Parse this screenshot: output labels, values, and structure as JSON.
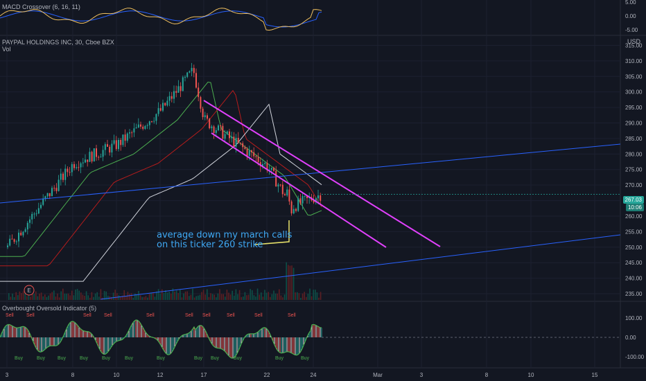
{
  "colors": {
    "background": "#131722",
    "up": "#26a69a",
    "down": "#ef5350",
    "channel": "#e040fb",
    "trendline": "#2962ff",
    "annotation": "#3fa9f5",
    "ma_fast": "#4caf50",
    "ma_mid": "#b71c1c",
    "ma_slow": "#d1d4dc",
    "price_tag": "#26a69a"
  },
  "panes": {
    "macd": {
      "label": "MACD Crossover (6, 16, 11)",
      "y_ticks": [
        "5.00",
        "0.00",
        "-5.00"
      ]
    },
    "main": {
      "title": "PAYPAL HOLDINGS INC, 30, Cboe BZX",
      "vol_label": "Vol",
      "currency": "USD",
      "y_ticks": [
        "315.00",
        "310.00",
        "305.00",
        "300.00",
        "295.00",
        "290.00",
        "285.00",
        "280.00",
        "275.00",
        "270.00",
        "265.00",
        "260.00",
        "255.00",
        "250.00",
        "245.00",
        "240.00",
        "235.00"
      ],
      "last_price": "267.03",
      "countdown": "10:06",
      "earnings_marker": "E"
    },
    "oscillator": {
      "label": "Overbought Oversold Indicator (5)",
      "y_ticks": [
        "100.00",
        "0.00",
        "-100.00"
      ],
      "sell_label": "Sell",
      "buy_label": "Buy"
    }
  },
  "x_axis": [
    "3",
    "8",
    "10",
    "12",
    "17",
    "22",
    "24",
    "Mar",
    "3",
    "8",
    "10",
    "15"
  ],
  "annotation": {
    "line1": "average down my march calls",
    "line2": "on this ticker 260 strike"
  },
  "chart_data": {
    "type": "candlestick",
    "title": "PAYPAL HOLDINGS INC, 30, Cboe BZX",
    "y_range": [
      233,
      318
    ],
    "y_unit": "USD",
    "last_price": 267.03,
    "approx_price_path": [
      {
        "x": "3",
        "close": 250
      },
      {
        "x": "8",
        "close": 277
      },
      {
        "x": "10",
        "close": 283
      },
      {
        "x": "12",
        "close": 294
      },
      {
        "x": "15",
        "close": 307
      },
      {
        "x": "17",
        "close": 291
      },
      {
        "x": "22",
        "close": 276
      },
      {
        "x": "23",
        "close": 263
      },
      {
        "x": "24",
        "close": 267
      }
    ],
    "macd_range": [
      -5,
      5
    ],
    "oscillator_range": [
      -100,
      100
    ]
  }
}
